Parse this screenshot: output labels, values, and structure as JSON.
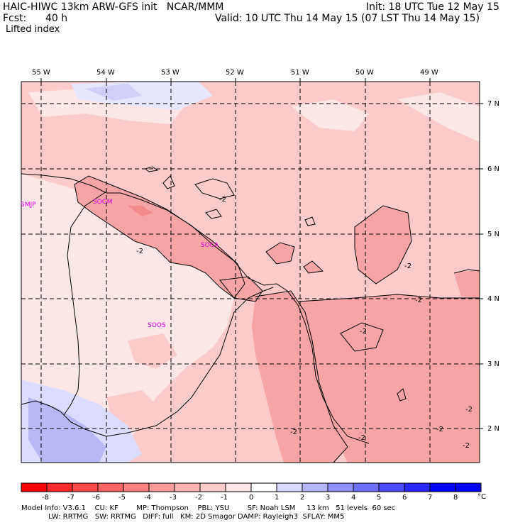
{
  "header": {
    "model_line": "HAIC-HIWC 13km ARW-GFS init   NCAR/MMM",
    "init": "Init: 18 UTC Tue 12 May 15",
    "fcst_label": "Fcst:",
    "fcst_value": "40 h",
    "valid": "Valid: 10 UTC Thu 14 May 15 (07 LST Thu 14 May 15)",
    "field": "Lifted index"
  },
  "axes": {
    "lon_labels": [
      "55 W",
      "54 W",
      "53 W",
      "52 W",
      "51 W",
      "50 W",
      "49 W"
    ],
    "lat_labels": [
      "7 N",
      "6 N",
      "5 N",
      "4 N",
      "3 N",
      "2 N"
    ]
  },
  "stations": [
    "SMJP",
    "SOGM",
    "SOCA",
    "SOOS"
  ],
  "contour_labels": [
    "-2",
    "-2",
    "-2",
    "-2",
    "-2",
    "-2",
    "-2",
    "-2",
    "-2",
    "-2"
  ],
  "colorbar": {
    "ticks": [
      "-8",
      "-7",
      "-6",
      "-5",
      "-4",
      "-3",
      "-2",
      "-1",
      "0",
      "1",
      "2",
      "3",
      "4",
      "5",
      "6",
      "7",
      "8"
    ],
    "unit": "°C",
    "colors": [
      "#ff0000",
      "#ff2a2a",
      "#ff4848",
      "#ff6464",
      "#ff8080",
      "#fb9a9a",
      "#fab4b4",
      "#fbcaca",
      "#fde6e6",
      "#ffffff",
      "#d9d9ff",
      "#b4b4ff",
      "#9090ff",
      "#6e6eff",
      "#4b4bff",
      "#2828ff",
      "#0000ff"
    ]
  },
  "footer": {
    "line1": "Model Info: V3.6.1    CU: KF        MP: Thompson    PBL: YSU        SF: Noah LSM     13 km   51 levels  60 sec",
    "line2": "            LW: RRTMG   SW: RRTMG   DIFF: full   KM: 2D Smagor DAMP: Rayleigh3  SFLAY: MM5"
  },
  "legend_colors": {
    "contour_line": "#000000",
    "grid": "#000000",
    "station": "#e000e0"
  }
}
